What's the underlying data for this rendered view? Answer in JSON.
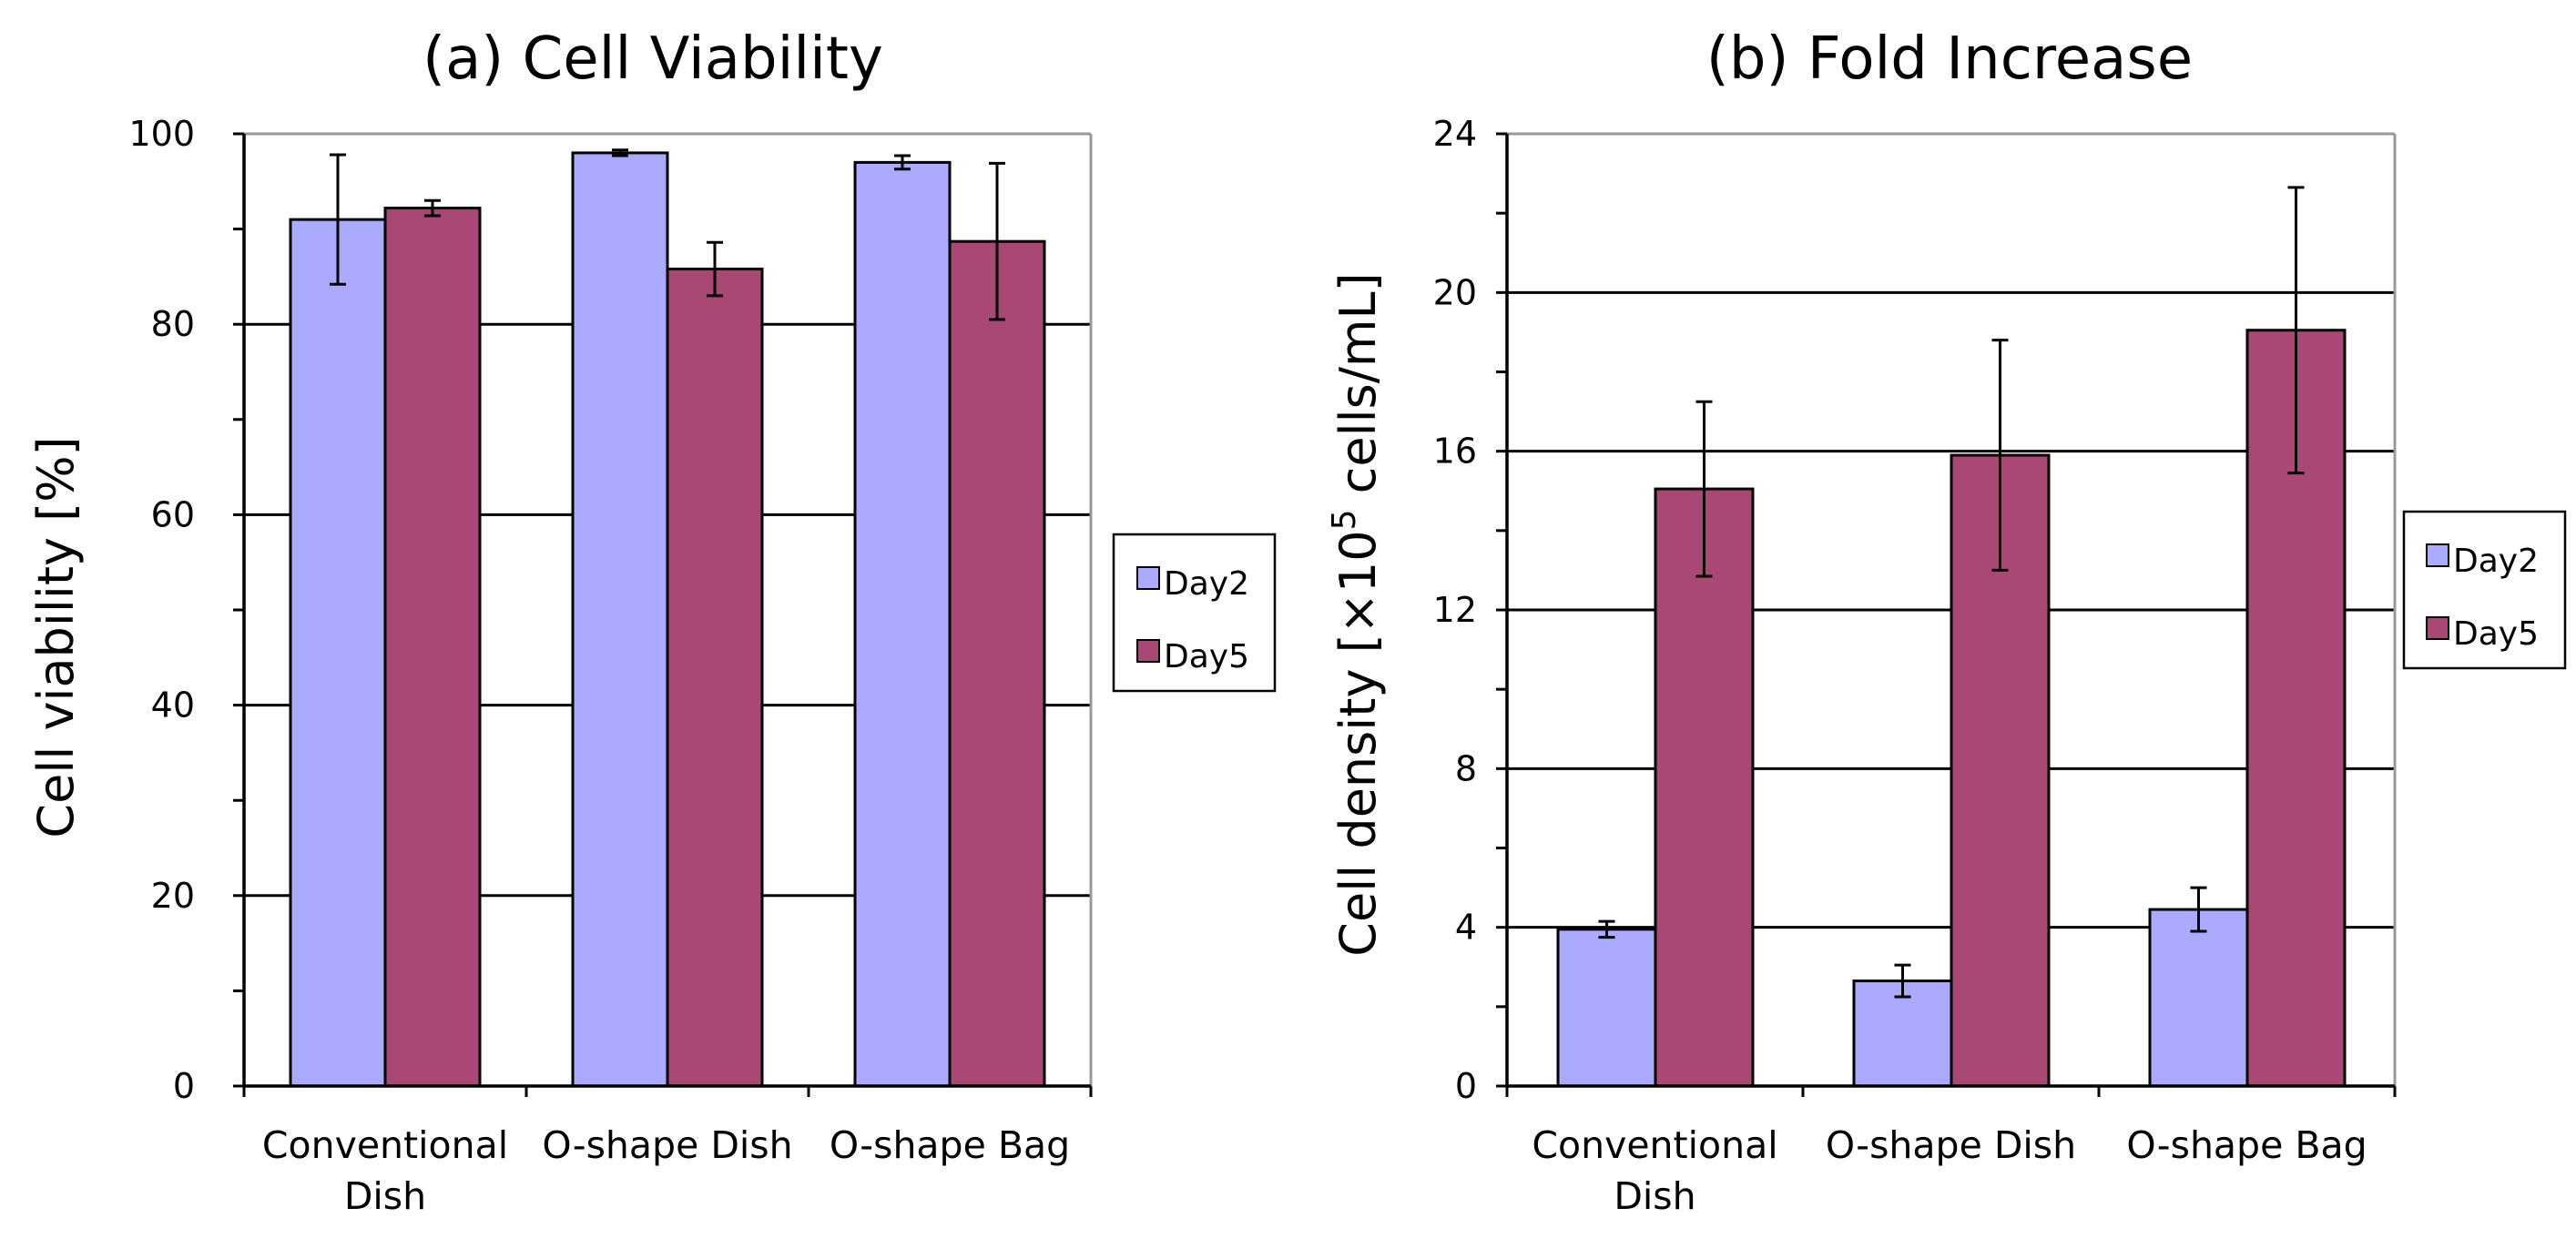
{
  "chart_data": [
    {
      "type": "bar",
      "title": "(a) Cell Viability",
      "ylabel": "Cell viability [%]",
      "xlabel": "",
      "categories": [
        [
          "Conventional",
          "Dish"
        ],
        [
          "O-shape Dish"
        ],
        [
          "O-shape Bag"
        ]
      ],
      "ylim": [
        0,
        100
      ],
      "yticks": [
        0,
        20,
        40,
        60,
        80,
        100
      ],
      "grid": true,
      "legend_position": "right",
      "series": [
        {
          "name": "Day2",
          "color": "#aaaaff",
          "values": [
            91,
            98,
            97
          ],
          "errors": [
            6.8,
            0.3,
            0.7
          ]
        },
        {
          "name": "Day5",
          "color": "#a94775",
          "values": [
            92.2,
            85.8,
            88.7
          ],
          "errors": [
            0.8,
            2.8,
            8.2
          ]
        }
      ]
    },
    {
      "type": "bar",
      "title": "(b) Fold Increase",
      "ylabel": "Cell density [×10⁵ cells/mL]",
      "ylabel_parts": [
        "Cell density [",
        "×10",
        "5",
        " cells/mL]"
      ],
      "xlabel": "",
      "categories": [
        [
          "Conventional",
          "Dish"
        ],
        [
          "O-shape Dish"
        ],
        [
          "O-shape Bag"
        ]
      ],
      "ylim": [
        0,
        24
      ],
      "yticks": [
        0,
        4,
        8,
        12,
        16,
        20,
        24
      ],
      "grid": true,
      "legend_position": "right",
      "series": [
        {
          "name": "Day2",
          "color": "#aaaaff",
          "values": [
            3.95,
            2.65,
            4.45
          ],
          "errors": [
            0.2,
            0.4,
            0.55
          ]
        },
        {
          "name": "Day5",
          "color": "#a94775",
          "values": [
            15.05,
            15.9,
            19.05
          ],
          "errors": [
            2.2,
            2.9,
            3.6
          ]
        }
      ]
    }
  ]
}
